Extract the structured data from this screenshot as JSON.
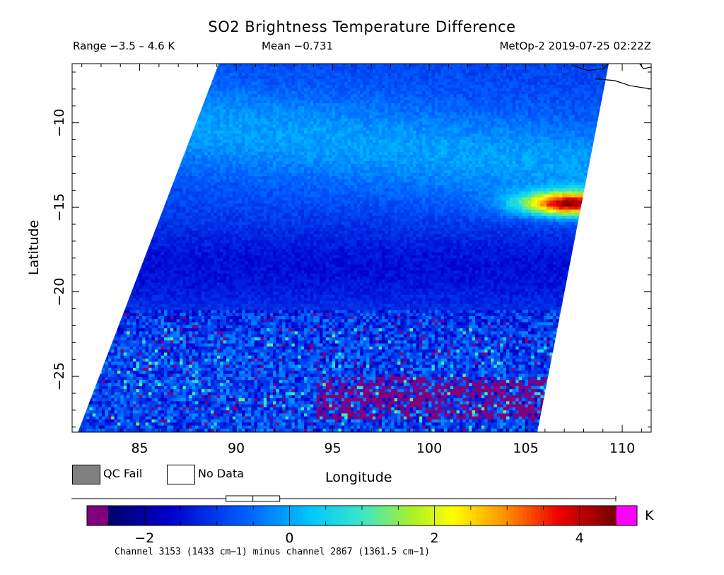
{
  "header": {
    "title": "SO2 Brightness Temperature Difference",
    "range_text": "Range −3.5 – 4.6 K",
    "mean_text": "Mean −0.731",
    "satellite_text": "MetOp-2 2019-07-25 02:22Z"
  },
  "legend": {
    "qc_fail_label": "QC Fail",
    "no_data_label": "No Data",
    "qc_fail_color": "#808080",
    "no_data_color": "#ffffff"
  },
  "colorbar": {
    "unit": "K",
    "ticks": [
      -2,
      0,
      2,
      4
    ],
    "tick_labels": [
      "−2",
      "0",
      "2",
      "4"
    ],
    "range": [
      -2.5,
      4.5
    ],
    "under_color": "#800080",
    "over_color": "#ff00ff",
    "box_whisker": {
      "min": -3.5,
      "q1": -1.2,
      "median": -0.8,
      "q3": -0.4,
      "max": 4.6
    }
  },
  "footnote": "Channel 3153 (1433 cm−1) minus channel 2867 (1361.5 cm−1)",
  "chart_data": {
    "type": "heatmap",
    "title": "SO2 Brightness Temperature Difference",
    "xlabel": "Longitude",
    "ylabel": "Latitude",
    "xlim": [
      81.5,
      111.5
    ],
    "ylim": [
      -28.3,
      -6.5
    ],
    "xticks": [
      85,
      90,
      95,
      100,
      105,
      110
    ],
    "yticks": [
      -10,
      -15,
      -20,
      -25
    ],
    "xtick_labels": [
      "85",
      "90",
      "95",
      "100",
      "105",
      "110"
    ],
    "ytick_labels": [
      "−10",
      "−15",
      "−20",
      "−25"
    ],
    "value_range_K": [
      -3.5,
      4.6
    ],
    "mean_K": -0.731,
    "swath_corners": {
      "top_left": [
        89.1,
        -6.5
      ],
      "top_right": [
        109.3,
        -6.5
      ],
      "bottom_left": [
        81.8,
        -28.3
      ],
      "bottom_right": [
        105.6,
        -28.3
      ]
    },
    "features": [
      {
        "name": "cyan band",
        "lat_range": [
          -14,
          -8
        ],
        "value_K": 0.0
      },
      {
        "name": "dark blue band",
        "lat_range": [
          -21,
          -16
        ],
        "value_K": -1.6
      },
      {
        "name": "hot spot",
        "lon": 107.3,
        "lat": -14.7,
        "value_K": 4.4
      },
      {
        "name": "purple strip",
        "lon_range": [
          94,
          106
        ],
        "lat_range": [
          -27.5,
          -25
        ],
        "value_K": -2.6
      }
    ]
  }
}
